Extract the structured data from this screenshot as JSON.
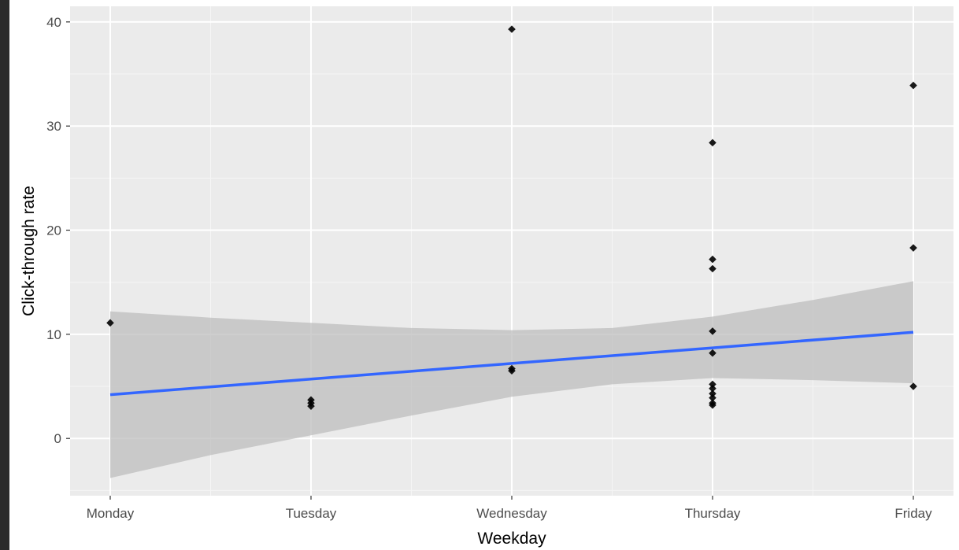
{
  "chart_data": {
    "type": "scatter",
    "title": "",
    "xlabel": "Weekday",
    "ylabel": "Click-through rate",
    "categories": [
      "Monday",
      "Tuesday",
      "Wednesday",
      "Thursday",
      "Friday"
    ],
    "x_positions": [
      1,
      2,
      3,
      4,
      5
    ],
    "ylim": [
      -5.5,
      41.5
    ],
    "yticks": [
      0,
      10,
      20,
      30,
      40
    ],
    "grid": true,
    "legend": "none",
    "points": [
      {
        "x": 1,
        "y": 11.1
      },
      {
        "x": 2,
        "y": 3.7
      },
      {
        "x": 2,
        "y": 3.4
      },
      {
        "x": 2,
        "y": 3.1
      },
      {
        "x": 3,
        "y": 39.3
      },
      {
        "x": 3,
        "y": 6.7
      },
      {
        "x": 3,
        "y": 6.5
      },
      {
        "x": 4,
        "y": 28.4
      },
      {
        "x": 4,
        "y": 17.2
      },
      {
        "x": 4,
        "y": 16.3
      },
      {
        "x": 4,
        "y": 10.3
      },
      {
        "x": 4,
        "y": 8.2
      },
      {
        "x": 4,
        "y": 5.2
      },
      {
        "x": 4,
        "y": 4.8
      },
      {
        "x": 4,
        "y": 4.3
      },
      {
        "x": 4,
        "y": 3.9
      },
      {
        "x": 4,
        "y": 3.4
      },
      {
        "x": 4,
        "y": 3.2
      },
      {
        "x": 5,
        "y": 33.9
      },
      {
        "x": 5,
        "y": 18.3
      },
      {
        "x": 5,
        "y": 5.0
      }
    ],
    "trend_line": {
      "x": [
        1,
        2,
        3,
        4,
        5
      ],
      "y": [
        4.2,
        5.7,
        7.2,
        8.7,
        10.2
      ]
    },
    "confidence_band": {
      "x": [
        1,
        1.5,
        2,
        2.5,
        3,
        3.5,
        4,
        4.5,
        5
      ],
      "lower": [
        -3.8,
        -1.6,
        0.3,
        2.2,
        4.0,
        5.2,
        5.8,
        5.6,
        5.3
      ],
      "upper": [
        12.2,
        11.6,
        11.1,
        10.6,
        10.4,
        10.6,
        11.7,
        13.3,
        15.1
      ]
    },
    "colors": {
      "panel_background": "#ebebeb",
      "grid_major": "#ffffff",
      "grid_minor": "#f5f5f5",
      "points": "#000000",
      "trend_line": "#3366ff",
      "confidence_band": "#bdbdbd"
    }
  }
}
